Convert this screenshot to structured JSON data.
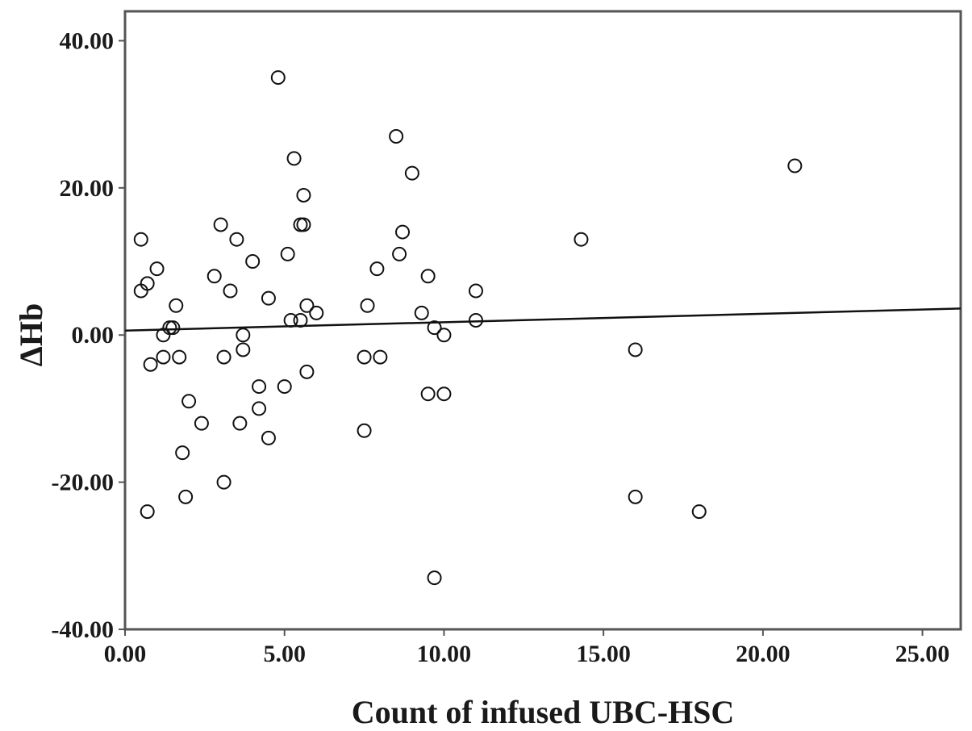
{
  "chart_data": {
    "type": "scatter",
    "xlabel": "Count of infused UBC-HSC",
    "ylabel": "ΔHb",
    "xlim": [
      0,
      26.2
    ],
    "ylim": [
      -40,
      44
    ],
    "x_ticks": [
      0,
      5,
      10,
      15,
      20,
      25
    ],
    "x_tick_labels": [
      "0.00",
      "5.00",
      "10.00",
      "15.00",
      "20.00",
      "25.00"
    ],
    "y_ticks": [
      40,
      20,
      0,
      -20,
      -40
    ],
    "y_tick_labels": [
      "40.00",
      "20.00",
      "0.00",
      "-20.00",
      "-40.00"
    ],
    "grid": false,
    "fit_line": {
      "x": [
        0,
        26.2
      ],
      "y": [
        0.6,
        3.6
      ]
    },
    "points": [
      [
        0.5,
        13
      ],
      [
        0.5,
        6
      ],
      [
        0.7,
        7
      ],
      [
        0.8,
        -4
      ],
      [
        0.7,
        -24
      ],
      [
        1.0,
        9
      ],
      [
        1.2,
        0
      ],
      [
        1.2,
        -3
      ],
      [
        1.4,
        1
      ],
      [
        1.5,
        1
      ],
      [
        1.6,
        4
      ],
      [
        1.7,
        -3
      ],
      [
        1.8,
        -16
      ],
      [
        1.9,
        -22
      ],
      [
        2.0,
        -9
      ],
      [
        2.4,
        -12
      ],
      [
        2.8,
        8
      ],
      [
        3.0,
        15
      ],
      [
        3.1,
        -3
      ],
      [
        3.1,
        -20
      ],
      [
        3.3,
        6
      ],
      [
        3.5,
        13
      ],
      [
        3.6,
        -12
      ],
      [
        3.7,
        0
      ],
      [
        3.7,
        -2
      ],
      [
        4.0,
        10
      ],
      [
        4.2,
        -7
      ],
      [
        4.2,
        -10
      ],
      [
        4.5,
        5
      ],
      [
        4.5,
        -14
      ],
      [
        4.8,
        35
      ],
      [
        5.0,
        -7
      ],
      [
        5.1,
        11
      ],
      [
        5.2,
        2
      ],
      [
        5.3,
        24
      ],
      [
        5.5,
        15
      ],
      [
        5.5,
        2
      ],
      [
        5.6,
        19
      ],
      [
        5.6,
        15
      ],
      [
        5.7,
        4
      ],
      [
        5.7,
        -5
      ],
      [
        6.0,
        3
      ],
      [
        7.5,
        -3
      ],
      [
        7.5,
        -13
      ],
      [
        7.6,
        4
      ],
      [
        7.9,
        9
      ],
      [
        8.0,
        -3
      ],
      [
        8.5,
        27
      ],
      [
        8.6,
        11
      ],
      [
        8.7,
        14
      ],
      [
        9.0,
        22
      ],
      [
        9.3,
        3
      ],
      [
        9.5,
        8
      ],
      [
        9.5,
        -8
      ],
      [
        9.7,
        1
      ],
      [
        9.7,
        -33
      ],
      [
        10.0,
        0
      ],
      [
        10.0,
        -8
      ],
      [
        11.0,
        6
      ],
      [
        11.0,
        2
      ],
      [
        14.3,
        13
      ],
      [
        16.0,
        -2
      ],
      [
        16.0,
        -22
      ],
      [
        18.0,
        -24
      ],
      [
        21.0,
        23
      ]
    ]
  }
}
